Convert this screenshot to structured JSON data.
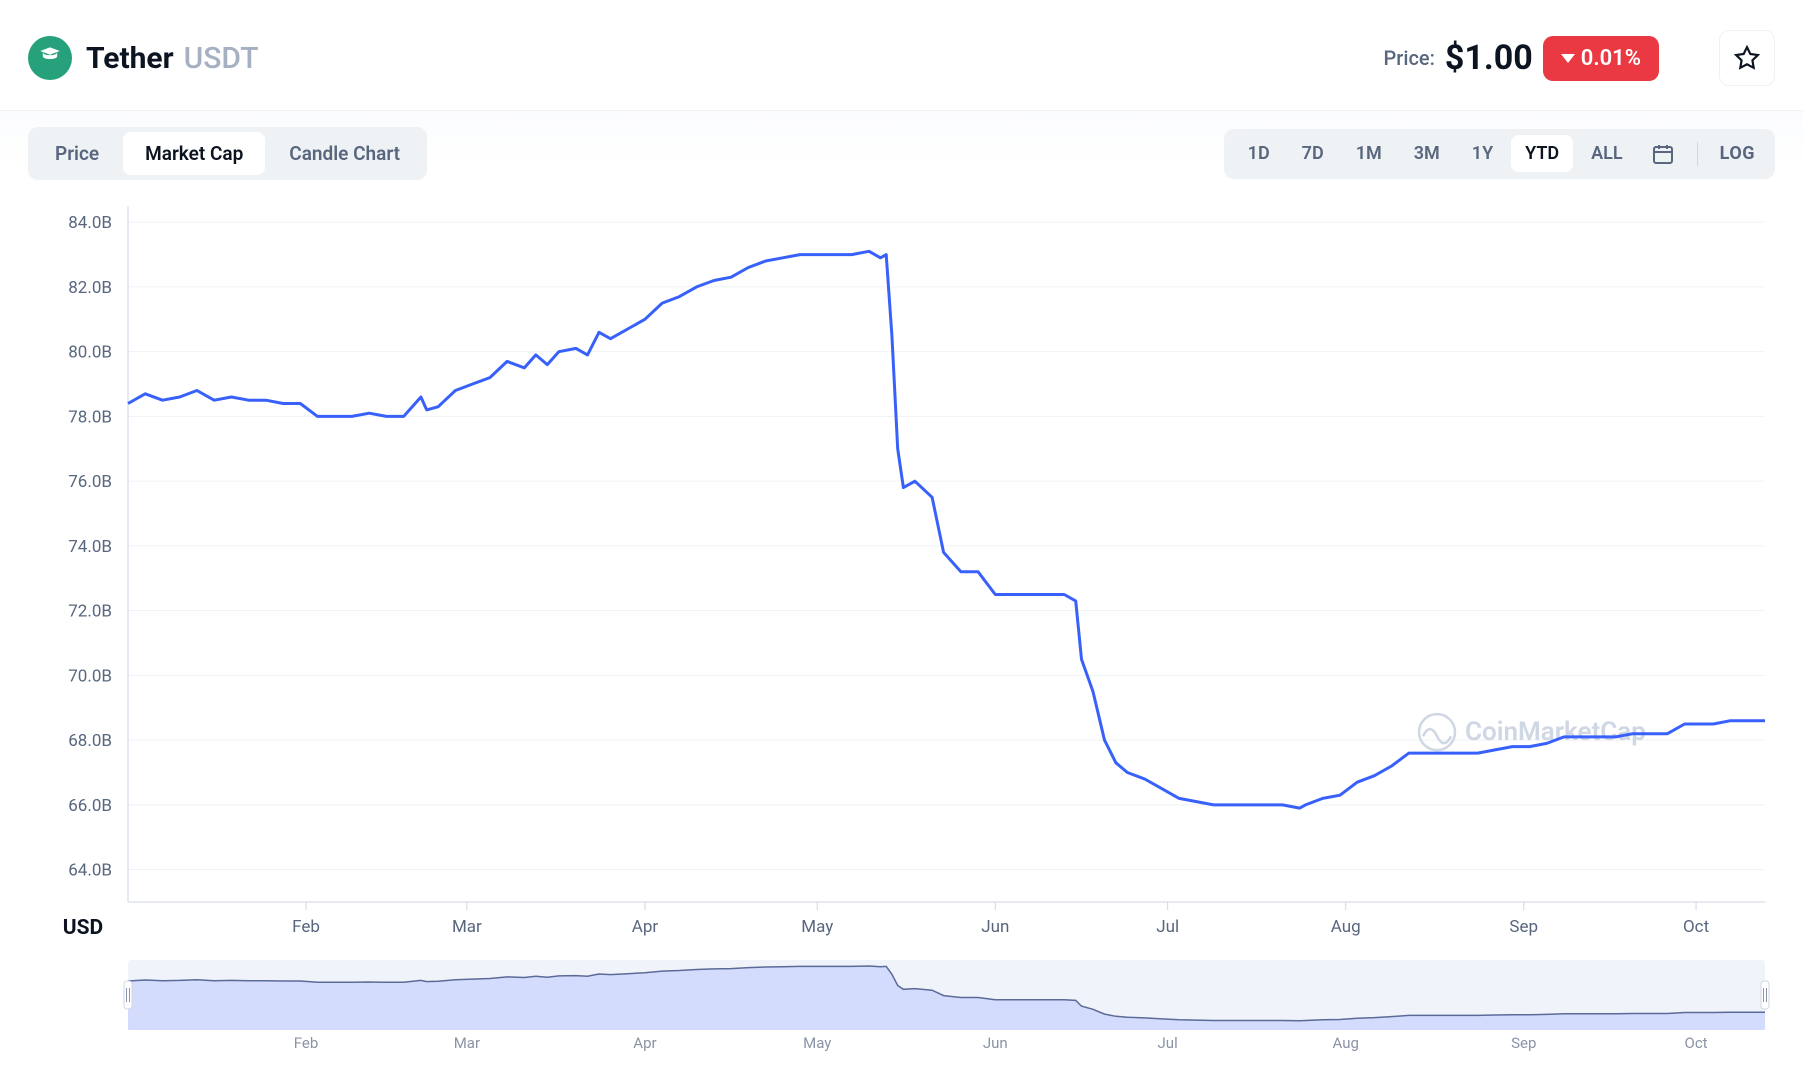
{
  "header": {
    "coin_name": "Tether",
    "coin_symbol": "USDT",
    "icon_bg": "#26a17b",
    "price_label": "Price:",
    "price_value": "$1.00",
    "change_pct": "0.01%",
    "change_direction": "down",
    "change_bg": "#ea3943"
  },
  "tabs": {
    "items": [
      "Price",
      "Market Cap",
      "Candle Chart"
    ],
    "active_index": 1
  },
  "ranges": {
    "items": [
      "1D",
      "7D",
      "1M",
      "3M",
      "1Y",
      "YTD",
      "ALL"
    ],
    "active_index": 5,
    "log_label": "LOG"
  },
  "chart": {
    "type": "line",
    "line_color": "#3861fb",
    "line_width": 3,
    "background_color": "#ffffff",
    "grid_color": "#eff2f5",
    "axis_color": "#cfd6e4",
    "label_color": "#58667e",
    "label_fontsize": 17,
    "currency_label": "USD",
    "ylim": [
      63.0,
      84.5
    ],
    "yticks": [
      64.0,
      66.0,
      68.0,
      70.0,
      72.0,
      74.0,
      76.0,
      78.0,
      80.0,
      82.0,
      84.0
    ],
    "ytick_labels": [
      "64.0B",
      "66.0B",
      "68.0B",
      "70.0B",
      "72.0B",
      "74.0B",
      "76.0B",
      "78.0B",
      "80.0B",
      "82.0B",
      "84.0B"
    ],
    "xlim": [
      0,
      285
    ],
    "xticks": [
      31,
      59,
      90,
      120,
      151,
      181,
      212,
      243,
      273
    ],
    "xtick_labels": [
      "Feb",
      "Mar",
      "Apr",
      "May",
      "Jun",
      "Jul",
      "Aug",
      "Sep",
      "Oct"
    ],
    "watermark_text": "CoinMarketCap",
    "series": [
      [
        0,
        78.4
      ],
      [
        3,
        78.7
      ],
      [
        6,
        78.5
      ],
      [
        9,
        78.6
      ],
      [
        12,
        78.8
      ],
      [
        15,
        78.5
      ],
      [
        18,
        78.6
      ],
      [
        21,
        78.5
      ],
      [
        24,
        78.5
      ],
      [
        27,
        78.4
      ],
      [
        30,
        78.4
      ],
      [
        33,
        78.0
      ],
      [
        36,
        78.0
      ],
      [
        39,
        78.0
      ],
      [
        42,
        78.1
      ],
      [
        45,
        78.0
      ],
      [
        48,
        78.0
      ],
      [
        51,
        78.6
      ],
      [
        52,
        78.2
      ],
      [
        54,
        78.3
      ],
      [
        57,
        78.8
      ],
      [
        60,
        79.0
      ],
      [
        63,
        79.2
      ],
      [
        66,
        79.7
      ],
      [
        69,
        79.5
      ],
      [
        71,
        79.9
      ],
      [
        73,
        79.6
      ],
      [
        75,
        80.0
      ],
      [
        78,
        80.1
      ],
      [
        80,
        79.9
      ],
      [
        82,
        80.6
      ],
      [
        84,
        80.4
      ],
      [
        87,
        80.7
      ],
      [
        90,
        81.0
      ],
      [
        93,
        81.5
      ],
      [
        96,
        81.7
      ],
      [
        99,
        82.0
      ],
      [
        102,
        82.2
      ],
      [
        105,
        82.3
      ],
      [
        108,
        82.6
      ],
      [
        111,
        82.8
      ],
      [
        114,
        82.9
      ],
      [
        117,
        83.0
      ],
      [
        120,
        83.0
      ],
      [
        123,
        83.0
      ],
      [
        126,
        83.0
      ],
      [
        129,
        83.1
      ],
      [
        131,
        82.9
      ],
      [
        132,
        83.0
      ],
      [
        133,
        80.5
      ],
      [
        134,
        77.0
      ],
      [
        135,
        75.8
      ],
      [
        137,
        76.0
      ],
      [
        140,
        75.5
      ],
      [
        142,
        73.8
      ],
      [
        145,
        73.2
      ],
      [
        148,
        73.2
      ],
      [
        151,
        72.5
      ],
      [
        154,
        72.5
      ],
      [
        157,
        72.5
      ],
      [
        160,
        72.5
      ],
      [
        163,
        72.5
      ],
      [
        165,
        72.3
      ],
      [
        166,
        70.5
      ],
      [
        168,
        69.5
      ],
      [
        170,
        68.0
      ],
      [
        172,
        67.3
      ],
      [
        174,
        67.0
      ],
      [
        177,
        66.8
      ],
      [
        180,
        66.5
      ],
      [
        183,
        66.2
      ],
      [
        186,
        66.1
      ],
      [
        189,
        66.0
      ],
      [
        192,
        66.0
      ],
      [
        195,
        66.0
      ],
      [
        198,
        66.0
      ],
      [
        201,
        66.0
      ],
      [
        204,
        65.9
      ],
      [
        205,
        66.0
      ],
      [
        208,
        66.2
      ],
      [
        211,
        66.3
      ],
      [
        214,
        66.7
      ],
      [
        217,
        66.9
      ],
      [
        220,
        67.2
      ],
      [
        223,
        67.6
      ],
      [
        226,
        67.6
      ],
      [
        229,
        67.6
      ],
      [
        232,
        67.6
      ],
      [
        235,
        67.6
      ],
      [
        238,
        67.7
      ],
      [
        241,
        67.8
      ],
      [
        244,
        67.8
      ],
      [
        247,
        67.9
      ],
      [
        250,
        68.1
      ],
      [
        253,
        68.1
      ],
      [
        256,
        68.1
      ],
      [
        259,
        68.1
      ],
      [
        262,
        68.2
      ],
      [
        265,
        68.2
      ],
      [
        268,
        68.2
      ],
      [
        271,
        68.5
      ],
      [
        273,
        68.5
      ],
      [
        276,
        68.5
      ],
      [
        279,
        68.6
      ],
      [
        282,
        68.6
      ],
      [
        285,
        68.6
      ]
    ]
  },
  "mini_chart": {
    "bg_color": "#f0f3fa",
    "area_color": "#c7d2fe",
    "line_color": "#5b6b98",
    "label_color": "#8a94a6",
    "xticks": [
      31,
      59,
      90,
      120,
      151,
      181,
      212,
      243,
      273
    ],
    "xtick_labels": [
      "Feb",
      "Mar",
      "Apr",
      "May",
      "Jun",
      "Jul",
      "Aug",
      "Sep",
      "Oct"
    ]
  }
}
